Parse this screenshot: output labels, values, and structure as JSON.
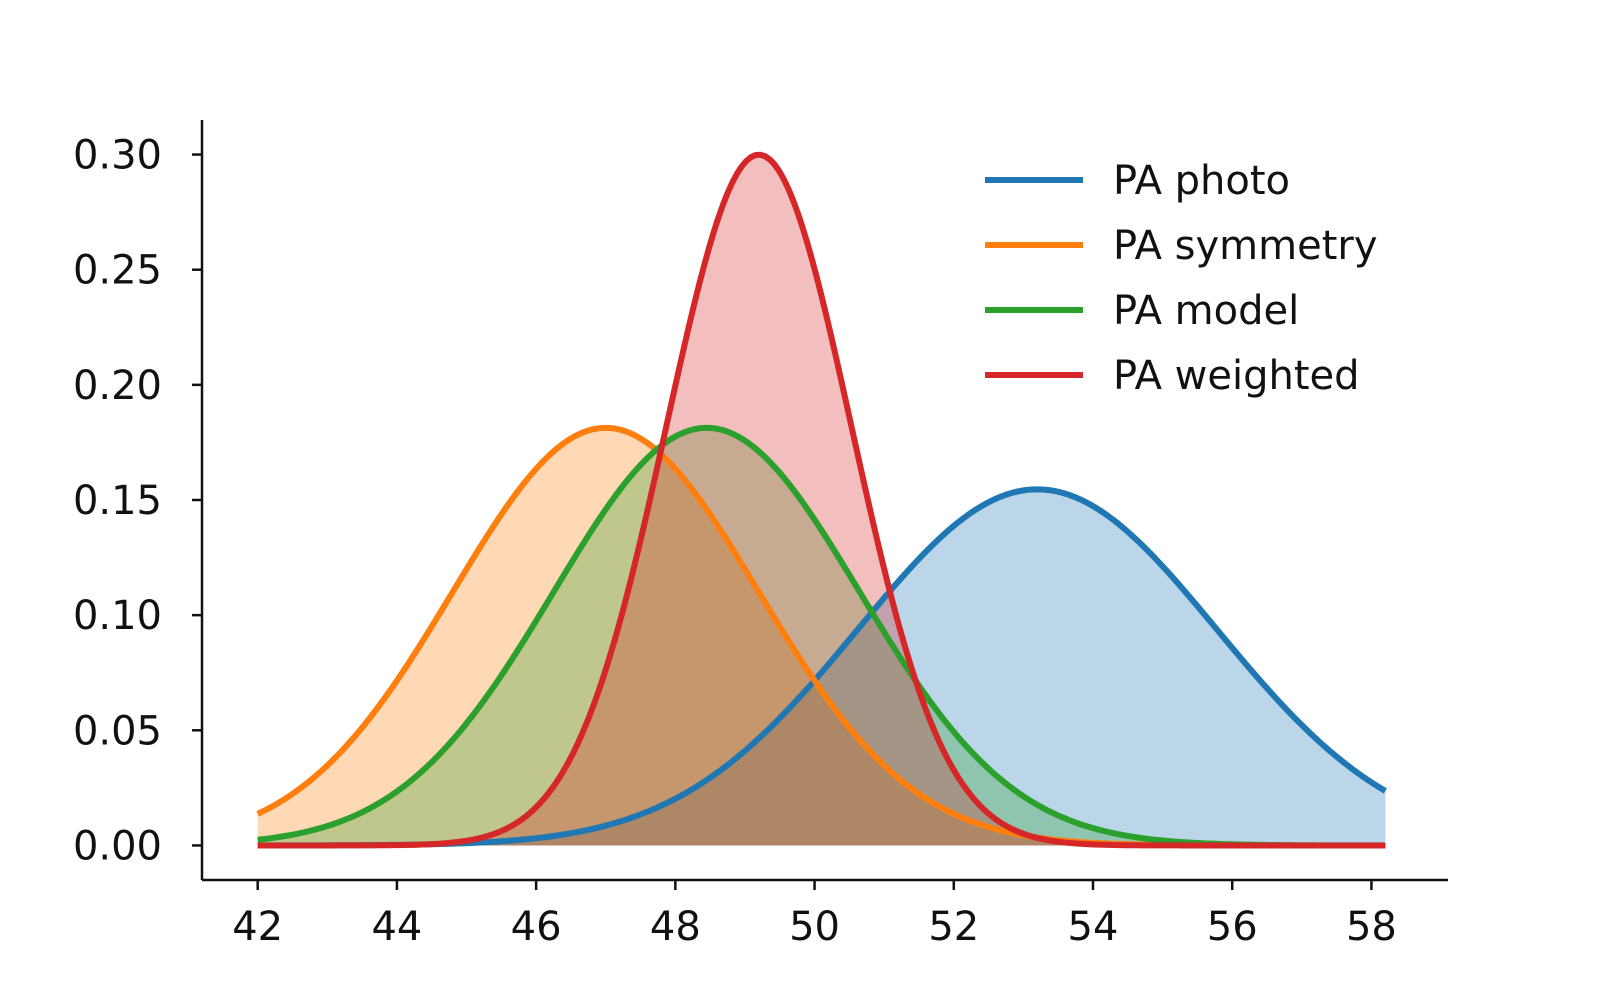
{
  "chart_data": {
    "type": "area",
    "title": "",
    "xlabel": "",
    "ylabel": "",
    "xlim": [
      41.2,
      59.1
    ],
    "ylim": [
      -0.015,
      0.315
    ],
    "x_range": [
      42,
      58.2
    ],
    "xticks": [
      42,
      44,
      46,
      48,
      50,
      52,
      54,
      56,
      58
    ],
    "yticks": [
      0.0,
      0.05,
      0.1,
      0.15,
      0.2,
      0.25,
      0.3
    ],
    "ytick_labels": [
      "0.00",
      "0.05",
      "0.10",
      "0.15",
      "0.20",
      "0.25",
      "0.30"
    ],
    "grid": false,
    "legend": {
      "position": "top-right"
    },
    "series": [
      {
        "name": "PA photo",
        "distribution": "normal",
        "mean": 53.2,
        "std": 2.58,
        "color": "#1f77b4",
        "fill": "#bad4e9"
      },
      {
        "name": "PA symmetry",
        "distribution": "normal",
        "mean": 47.0,
        "std": 2.2,
        "color": "#ff7f0e",
        "fill": "#ffd6b2"
      },
      {
        "name": "PA model",
        "distribution": "normal",
        "mean": 48.45,
        "std": 2.2,
        "color": "#2ca02c",
        "fill": "#8fc98f"
      },
      {
        "name": "PA weighted",
        "distribution": "normal",
        "mean": 49.2,
        "std": 1.33,
        "color": "#d62728",
        "fill": "#ee9da1"
      }
    ]
  }
}
